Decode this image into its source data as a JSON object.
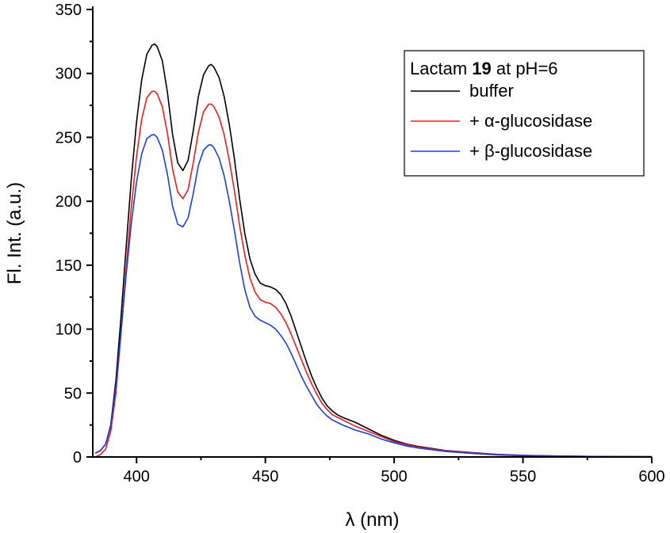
{
  "chart_data": {
    "type": "line",
    "xlabel": "λ (nm)",
    "ylabel": "Fl. Int. (a.u.)",
    "xlim": [
      383,
      600
    ],
    "ylim": [
      0,
      350
    ],
    "xticks": [
      400,
      450,
      500,
      550,
      600
    ],
    "yticks": [
      0,
      50,
      100,
      150,
      200,
      250,
      300,
      350
    ],
    "xtick_labels": [
      "400",
      "450",
      "500",
      "550",
      "600"
    ],
    "ytick_labels": [
      "0",
      "50",
      "100",
      "150",
      "200",
      "250",
      "300",
      "350"
    ],
    "grid": false,
    "legend": {
      "placement": "top-right",
      "title_prefix": "Lactam ",
      "title_bold": "19",
      "title_suffix": " at pH=6"
    },
    "series": [
      {
        "name": "buffer",
        "color": "#000000",
        "x": [
          384,
          386,
          388,
          390,
          392,
          394,
          396,
          398,
          400,
          402,
          404,
          406,
          407,
          408,
          410,
          412,
          414,
          416,
          418,
          420,
          422,
          424,
          426,
          428,
          429,
          430,
          432,
          434,
          436,
          438,
          440,
          442,
          444,
          446,
          448,
          450,
          452,
          454,
          456,
          458,
          460,
          462,
          464,
          466,
          468,
          470,
          472,
          474,
          476,
          478,
          480,
          485,
          490,
          495,
          500,
          505,
          510,
          520,
          530,
          540,
          550,
          560,
          570,
          580,
          590,
          600
        ],
        "y": [
          3,
          5,
          10,
          25,
          60,
          110,
          165,
          218,
          262,
          295,
          315,
          322,
          323,
          321,
          310,
          285,
          252,
          230,
          224,
          232,
          255,
          282,
          299,
          306,
          307,
          305,
          297,
          282,
          260,
          233,
          202,
          175,
          155,
          143,
          136,
          134,
          133,
          131,
          127,
          120,
          110,
          98,
          86,
          74,
          63,
          54,
          46,
          40,
          36,
          33,
          31,
          27,
          22,
          17,
          13,
          10,
          8,
          5,
          3.5,
          2,
          1.3,
          0.9,
          0.6,
          0.4,
          0.3,
          0.2
        ]
      },
      {
        "name": "+ α-glucosidase",
        "color": "#e8201c",
        "x": [
          384,
          386,
          388,
          390,
          392,
          394,
          396,
          398,
          400,
          402,
          404,
          406,
          407,
          408,
          410,
          412,
          414,
          416,
          418,
          420,
          422,
          424,
          426,
          428,
          429,
          430,
          432,
          434,
          436,
          438,
          440,
          442,
          444,
          446,
          448,
          450,
          452,
          454,
          456,
          458,
          460,
          462,
          464,
          466,
          468,
          470,
          472,
          474,
          476,
          478,
          480,
          485,
          490,
          495,
          500,
          505,
          510,
          520,
          530,
          540,
          550,
          560,
          570,
          580,
          590,
          600
        ],
        "y": [
          0,
          2,
          6,
          20,
          50,
          97,
          148,
          196,
          235,
          264,
          281,
          286,
          286,
          284,
          274,
          253,
          225,
          207,
          202,
          209,
          230,
          254,
          270,
          276,
          276,
          274,
          266,
          252,
          232,
          208,
          181,
          158,
          140,
          129,
          123,
          121,
          120,
          117,
          112,
          105,
          96,
          86,
          76,
          66,
          57,
          49,
          42,
          37,
          33,
          31,
          29,
          24,
          20,
          16,
          12,
          9.5,
          7.5,
          4.8,
          3.2,
          1.8,
          1.2,
          0.8,
          0.5,
          0.4,
          0.3,
          0.2
        ]
      },
      {
        "name": "+ β-glucosidase",
        "color": "#1f3fd9",
        "x": [
          384,
          386,
          388,
          390,
          392,
          394,
          396,
          398,
          400,
          402,
          404,
          406,
          407,
          408,
          410,
          412,
          414,
          416,
          418,
          420,
          422,
          424,
          426,
          428,
          429,
          430,
          432,
          434,
          436,
          438,
          440,
          442,
          444,
          446,
          448,
          450,
          452,
          454,
          456,
          458,
          460,
          462,
          464,
          466,
          468,
          470,
          472,
          474,
          476,
          478,
          480,
          485,
          490,
          495,
          500,
          505,
          510,
          520,
          530,
          540,
          550,
          560,
          570,
          580,
          590,
          600
        ],
        "y": [
          3,
          5,
          10,
          24,
          55,
          98,
          143,
          183,
          215,
          237,
          249,
          252,
          252,
          250,
          240,
          221,
          196,
          182,
          180,
          187,
          206,
          228,
          240,
          244,
          244,
          242,
          234,
          220,
          200,
          177,
          152,
          131,
          117,
          110,
          107,
          105,
          103,
          100,
          95,
          89,
          81,
          72,
          63,
          55,
          48,
          41,
          36,
          32,
          29,
          27,
          25,
          21,
          18,
          14,
          11,
          8.5,
          6.8,
          4.3,
          2.8,
          1.6,
          1.0,
          0.7,
          0.5,
          0.4,
          0.3,
          0.2
        ]
      }
    ]
  }
}
